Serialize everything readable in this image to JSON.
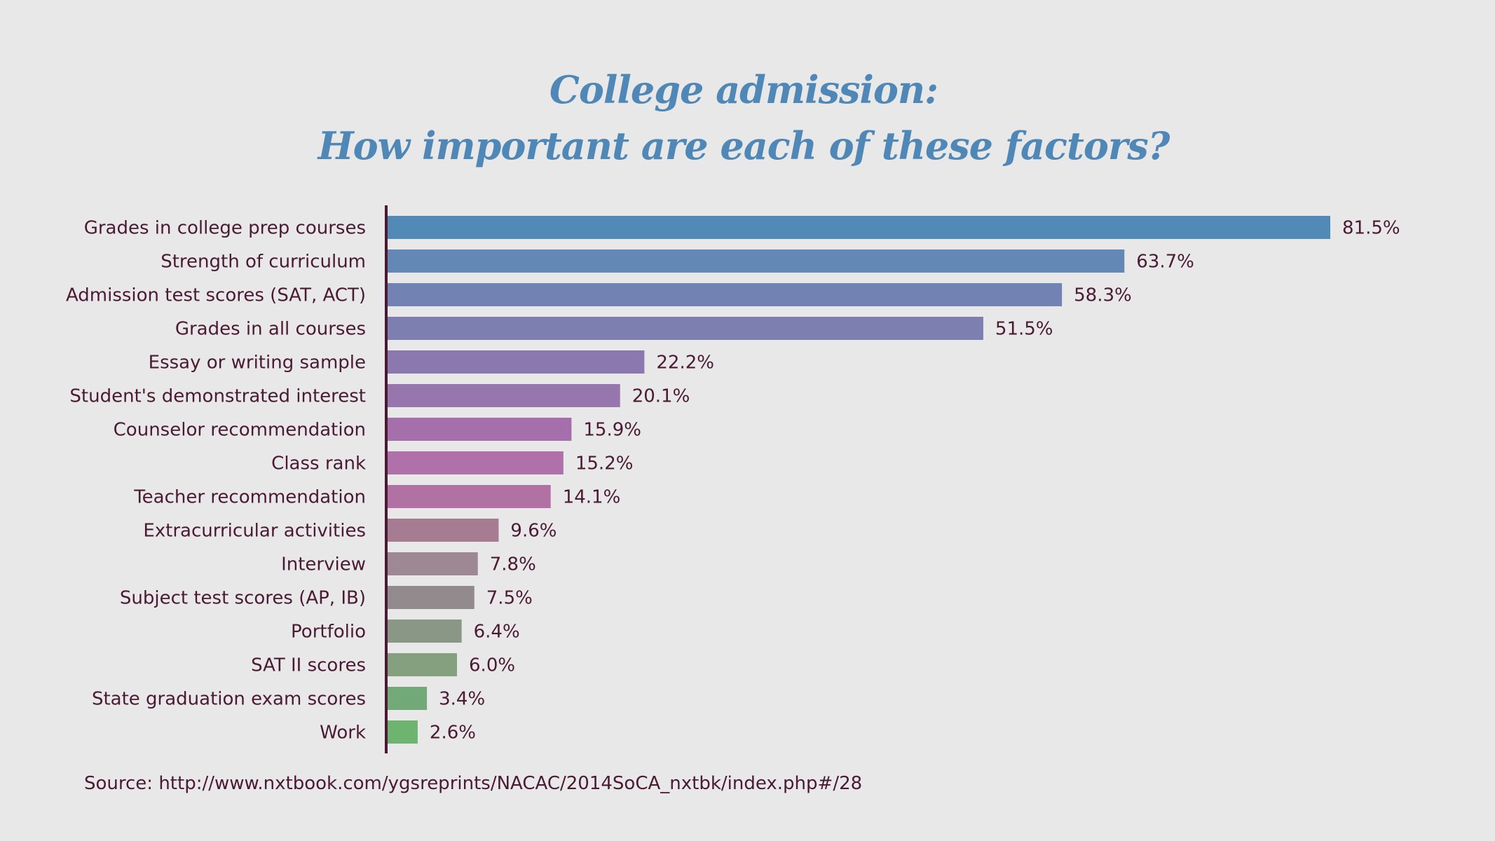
{
  "chart_data": {
    "type": "bar",
    "orientation": "horizontal",
    "title": [
      "College admission:",
      "How important are each of these factors?"
    ],
    "categories": [
      "Grades in college prep courses",
      "Strength of curriculum",
      "Admission test scores (SAT, ACT)",
      "Grades in all courses",
      "Essay or writing sample",
      "Student's demonstrated interest",
      "Counselor recommendation",
      "Class rank",
      "Teacher recommendation",
      "Extracurricular activities",
      "Interview",
      "Subject test scores (AP, IB)",
      "Portfolio",
      "SAT II scores",
      "State graduation exam scores",
      "Work"
    ],
    "values": [
      81.5,
      63.7,
      58.3,
      51.5,
      22.2,
      20.1,
      15.9,
      15.2,
      14.1,
      9.6,
      7.8,
      7.5,
      6.4,
      6.0,
      3.4,
      2.6
    ],
    "data_labels": [
      "81.5%",
      "63.7%",
      "58.3%",
      "51.5%",
      "22.2%",
      "20.1%",
      "15.9%",
      "15.2%",
      "14.1%",
      "9.6%",
      "7.8%",
      "7.5%",
      "6.4%",
      "6.0%",
      "3.4%",
      "2.6%"
    ],
    "colors": [
      "#5189b7",
      "#6488b5",
      "#7282b2",
      "#7d7fb0",
      "#8a78af",
      "#9676ad",
      "#a46fab",
      "#b071aa",
      "#b172a3",
      "#a67c92",
      "#9e8893",
      "#928b8e",
      "#8a9787",
      "#85a07f",
      "#73a878",
      "#6cb46f"
    ],
    "xlabel": "",
    "ylabel": "",
    "xlim": [
      0,
      81.5
    ],
    "grid": false,
    "legend": "none"
  },
  "source": "Source: http://www.nxtbook.com/ygsreprints/NACAC/2014SoCA_nxtbk/index.php#/28",
  "colors": {
    "title": "#4f87b7",
    "text": "#4a1a33",
    "axis": "#4a1a33",
    "background": "#e8e8e8"
  }
}
